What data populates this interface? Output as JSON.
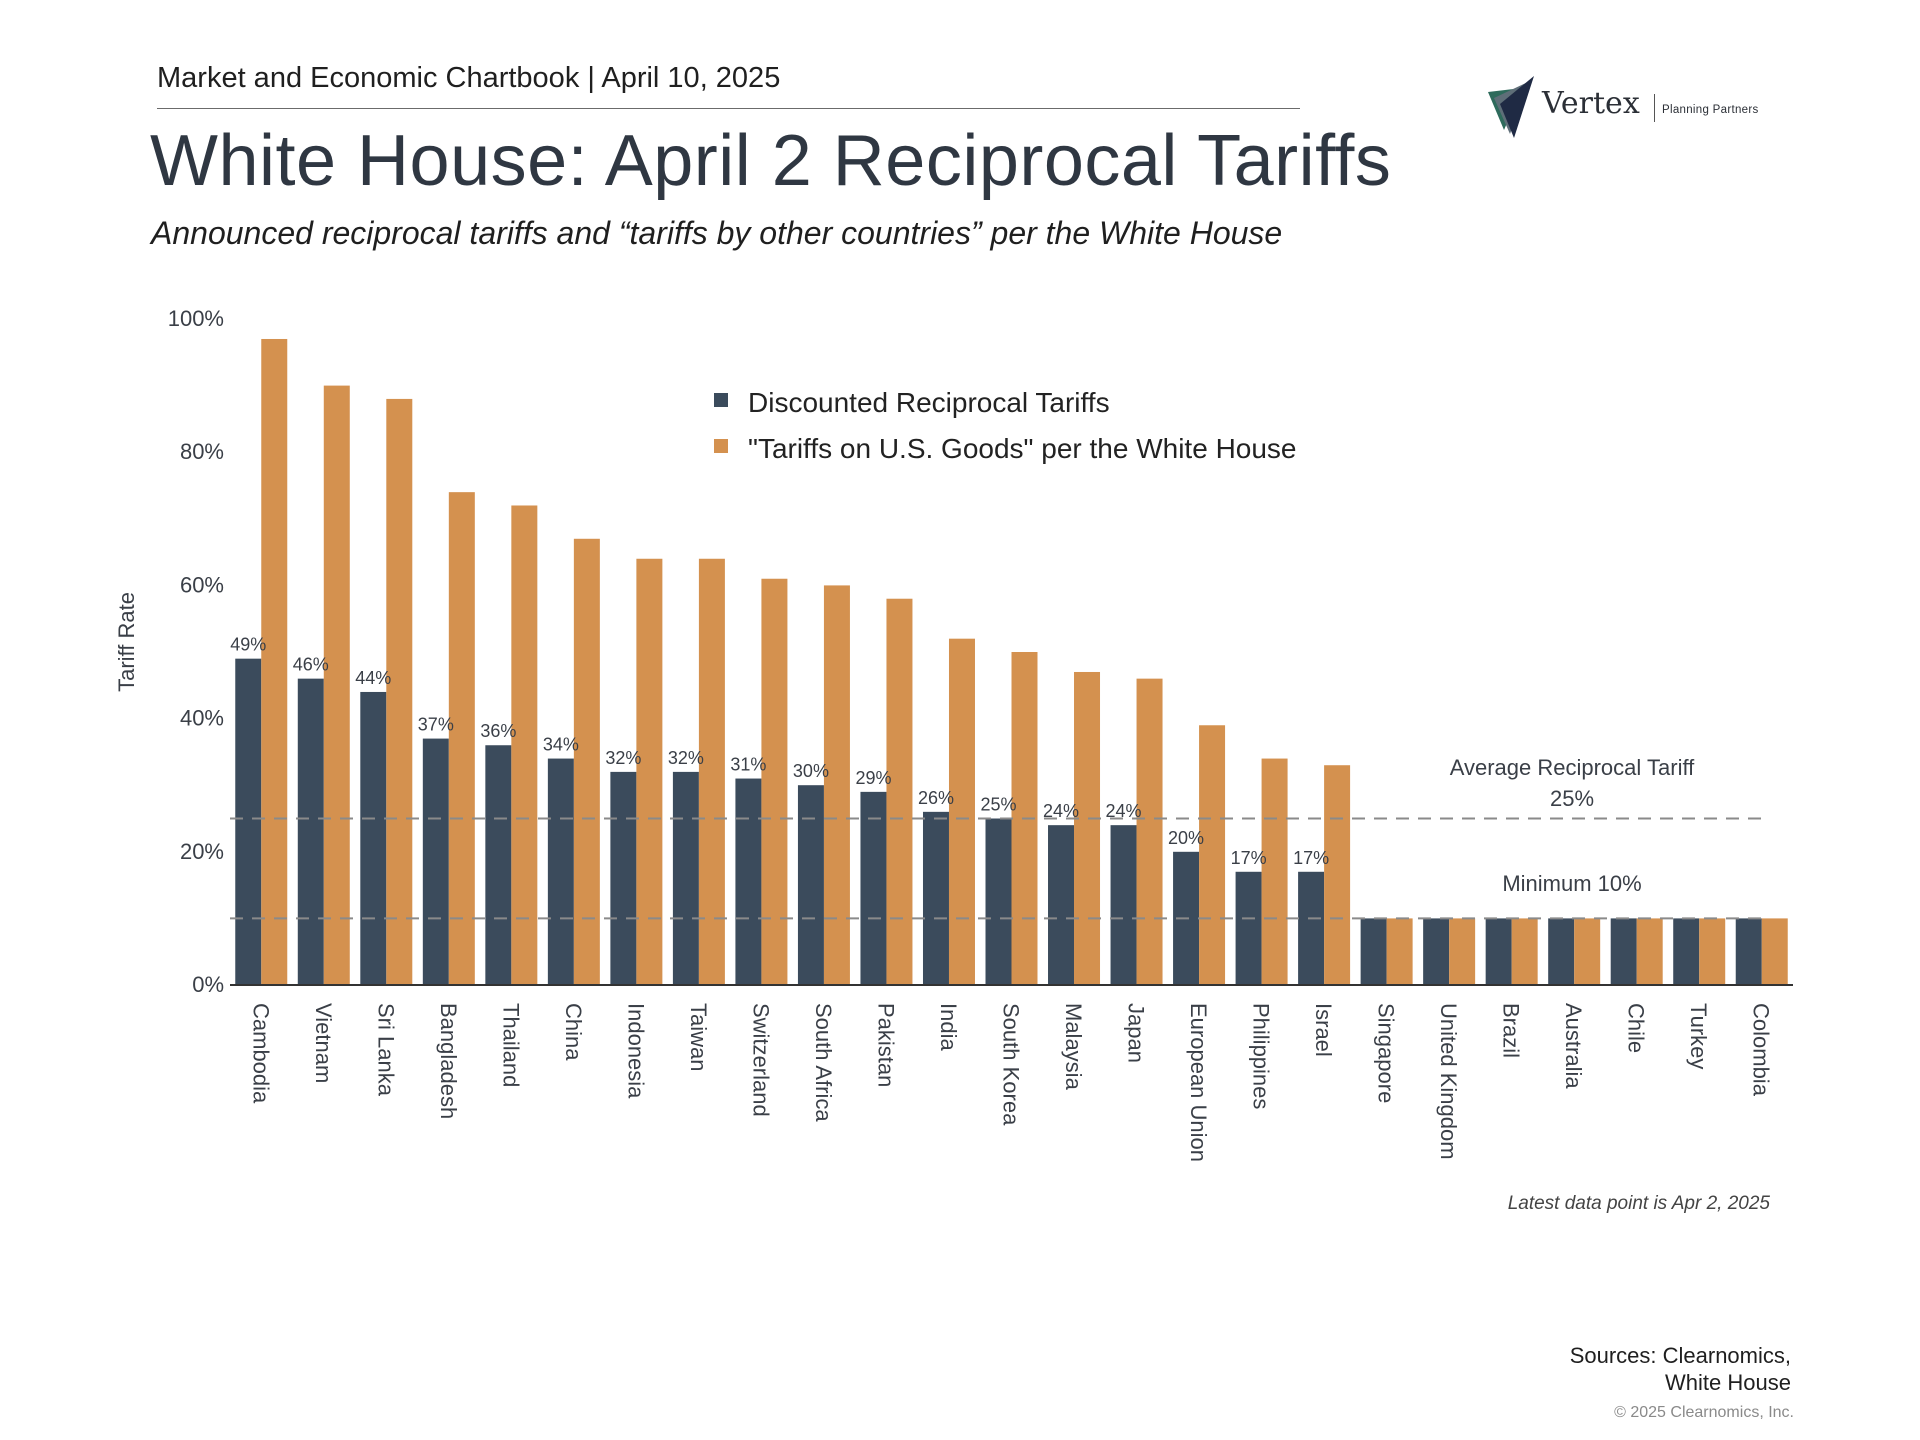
{
  "header": {
    "chartbook": "Market and Economic Chartbook | April 10, 2025",
    "title": "White House: April 2 Reciprocal Tariffs",
    "subtitle": "Announced reciprocal tariffs and “tariffs by other countries” per the White House"
  },
  "logo": {
    "name": "Vertex",
    "tagline": "Planning Partners"
  },
  "colors": {
    "discounted": "#3b4b5c",
    "white_house": "#d4914f",
    "axis": "#333333",
    "reference_line": "#8a8a8a",
    "text": "#3a3f47"
  },
  "chart_data": {
    "type": "bar",
    "ylabel": "Tariff Rate",
    "ylim": [
      0,
      100
    ],
    "yticks": [
      "0%",
      "20%",
      "40%",
      "60%",
      "80%",
      "100%"
    ],
    "categories": [
      "Cambodia",
      "Vietnam",
      "Sri Lanka",
      "Bangladesh",
      "Thailand",
      "China",
      "Indonesia",
      "Taiwan",
      "Switzerland",
      "South Africa",
      "Pakistan",
      "India",
      "South Korea",
      "Malaysia",
      "Japan",
      "European Union",
      "Philippines",
      "Israel",
      "Singapore",
      "United Kingdom",
      "Brazil",
      "Australia",
      "Chile",
      "Turkey",
      "Colombia"
    ],
    "series": [
      {
        "name": "Discounted Reciprocal Tariffs",
        "values": [
          49,
          46,
          44,
          37,
          36,
          34,
          32,
          32,
          31,
          30,
          29,
          26,
          25,
          24,
          24,
          20,
          17,
          17,
          10,
          10,
          10,
          10,
          10,
          10,
          10
        ],
        "data_labels": [
          "49%",
          "46%",
          "44%",
          "37%",
          "36%",
          "34%",
          "32%",
          "32%",
          "31%",
          "30%",
          "29%",
          "26%",
          "25%",
          "24%",
          "24%",
          "20%",
          "17%",
          "17%"
        ]
      },
      {
        "name": "\"Tariffs on U.S. Goods\" per the White House",
        "values": [
          97,
          90,
          88,
          74,
          72,
          67,
          64,
          64,
          61,
          60,
          58,
          52,
          50,
          47,
          46,
          39,
          34,
          33,
          10,
          10,
          10,
          10,
          10,
          10,
          10
        ]
      }
    ],
    "reference_lines": [
      {
        "value": 25,
        "label": "Average Reciprocal Tariff",
        "value_label": "25%"
      },
      {
        "value": 10,
        "label": "Minimum 10%"
      }
    ],
    "legend_position": "top-center",
    "grid": false
  },
  "footer": {
    "note": "Latest data point is Apr 2, 2025",
    "sources_line1": "Sources: Clearnomics,",
    "sources_line2": "White House",
    "copyright": "© 2025 Clearnomics, Inc."
  }
}
